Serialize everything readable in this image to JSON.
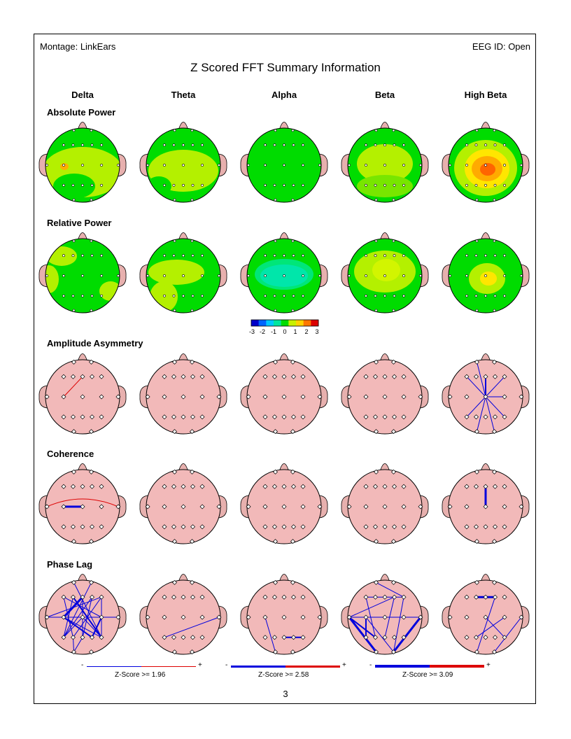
{
  "header": {
    "montage": "Montage:  LinkEars",
    "eeg_id": "EEG ID:  Open"
  },
  "title": "Z Scored FFT Summary Information",
  "bands": [
    "Delta",
    "Theta",
    "Alpha",
    "Beta",
    "High Beta"
  ],
  "sections": [
    "Absolute Power",
    "Relative Power",
    "Amplitude Asymmetry",
    "Coherence",
    "Phase Lag"
  ],
  "colorbar": {
    "ticks": [
      "-3",
      "-2",
      "-1",
      "0",
      "1",
      "2",
      "3"
    ],
    "colors": [
      "#0000c8",
      "#0064ff",
      "#00c8ff",
      "#00e6a0",
      "#00dc00",
      "#c8f000",
      "#ffd200",
      "#ff7800",
      "#dc0000"
    ]
  },
  "legends": [
    {
      "minus": "-",
      "plus": "+",
      "label": "Z-Score >= 1.96"
    },
    {
      "minus": "-",
      "plus": "+",
      "label": "Z-Score >= 2.58"
    },
    {
      "minus": "-",
      "plus": "+",
      "label": "Z-Score >= 3.09"
    }
  ],
  "page_number": "3",
  "colors": {
    "head_pink": "#f2b9b9",
    "ear_pink": "#e7b0ae",
    "green": "#00dc00",
    "yellow_green": "#c8f000",
    "negative_line": "#0000dd",
    "positive_line": "#dd0000"
  }
}
